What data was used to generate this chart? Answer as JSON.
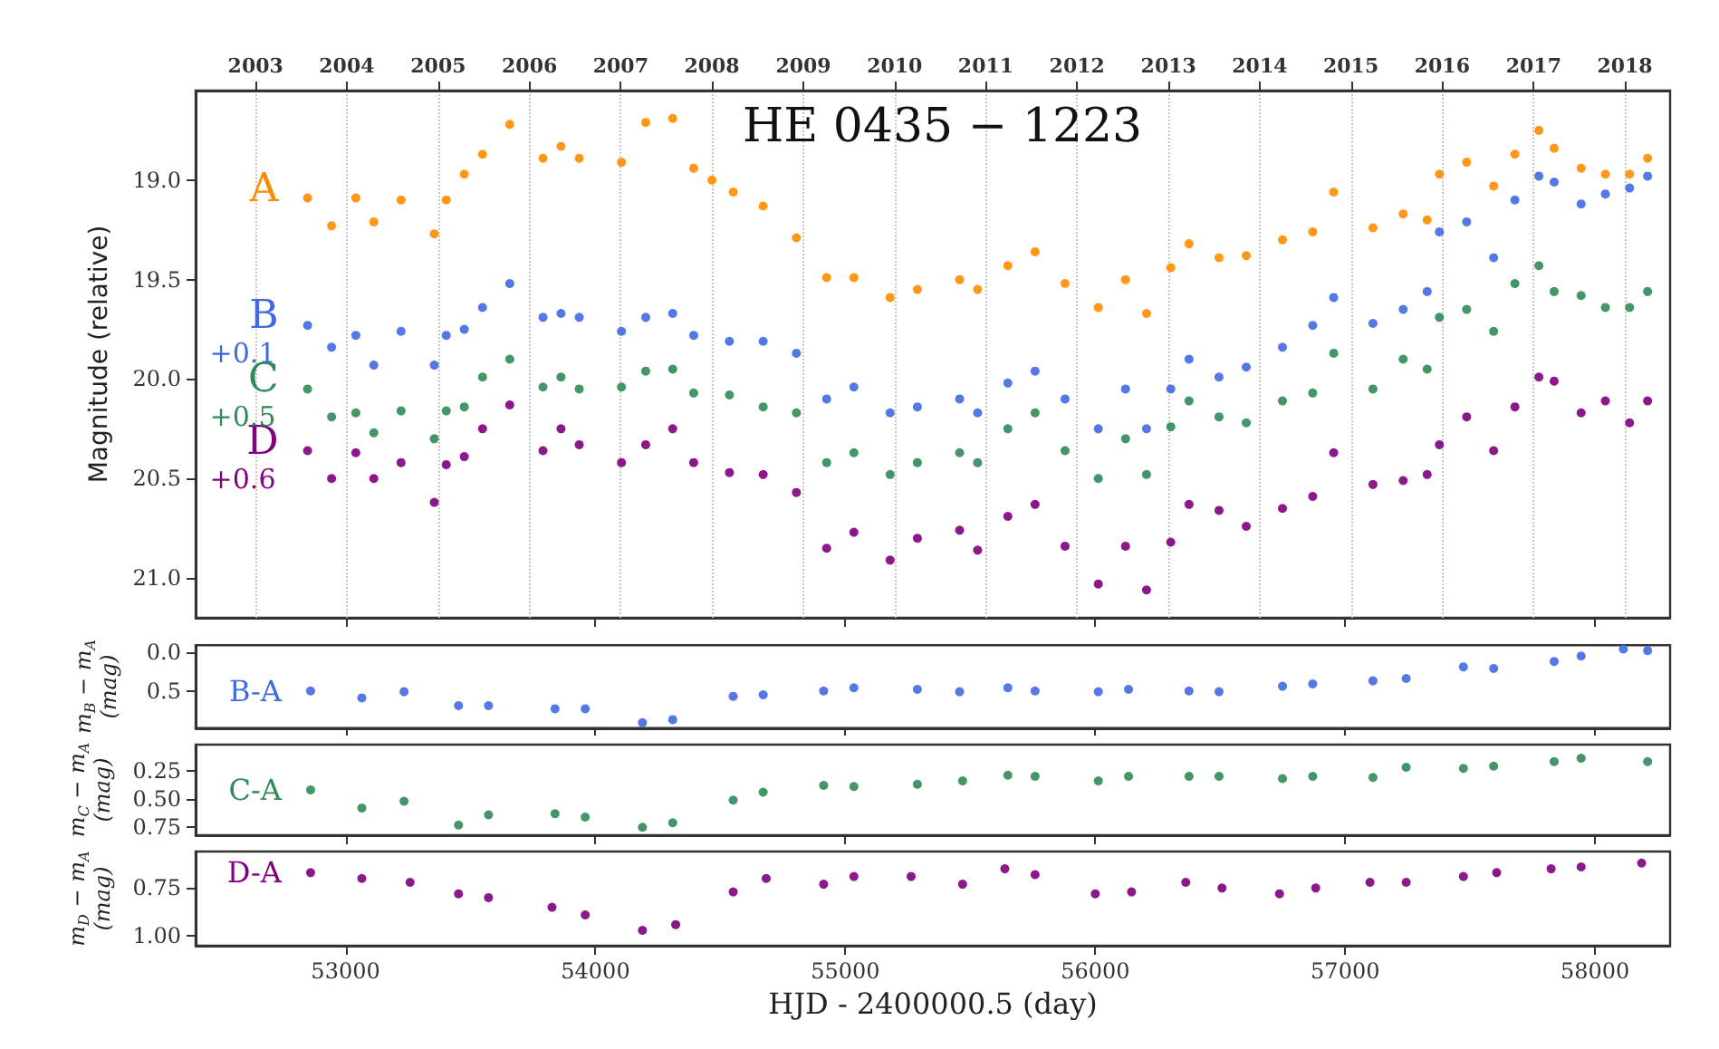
{
  "chart_data": [
    {
      "type": "scatter",
      "title": "HE 0435 − 1223",
      "ylabel": "Magnitude (relative)",
      "marker": "circle",
      "grid": "x",
      "tick_labels": "y",
      "xlim": [
        52400,
        58300
      ],
      "ylim": [
        21.2,
        18.55
      ],
      "xticks": [
        53000,
        54000,
        55000,
        56000,
        57000,
        58000
      ],
      "yticks": [
        {
          "value": 19,
          "label": "19.0"
        },
        19.5,
        {
          "value": 20,
          "label": "20.0"
        },
        20.5,
        {
          "value": 21,
          "label": "21.0"
        }
      ],
      "x2lim": [
        "2002-05-06",
        "2018-07-01"
      ],
      "x2ticks": [
        "2003",
        "2004",
        "2005",
        "2006",
        "2007",
        "2008",
        "2009",
        "2010",
        "2011",
        "2012",
        "2013",
        "2014",
        "2015",
        "2016",
        "2017",
        "2018"
      ],
      "annotations": [
        "+0.1",
        "+0.5",
        "+0.6"
      ],
      "series": [
        {
          "name": "A",
          "color": "#ff8c00",
          "x": [
            52848,
            52944,
            53041,
            53113,
            53222,
            53355,
            53403,
            53475,
            53548,
            53657,
            53790,
            53862,
            53935,
            54104,
            54201,
            54309,
            54393,
            54466,
            54551,
            54671,
            54804,
            54925,
            55034,
            55179,
            55288,
            55457,
            55529,
            55650,
            55759,
            55879,
            56012,
            56121,
            56205,
            56302,
            56375,
            56495,
            56604,
            56749,
            56870,
            56954,
            57111,
            57232,
            57328,
            57377,
            57486,
            57594,
            57679,
            57775,
            57836,
            57944,
            58041,
            58138,
            58210
          ],
          "values": [
            19.09,
            19.23,
            19.09,
            19.21,
            19.1,
            19.27,
            19.1,
            18.97,
            18.87,
            18.72,
            18.89,
            18.83,
            18.89,
            18.91,
            18.71,
            18.69,
            18.94,
            19.0,
            19.06,
            19.13,
            19.29,
            19.49,
            19.49,
            19.59,
            19.55,
            19.5,
            19.55,
            19.43,
            19.36,
            19.52,
            19.64,
            19.5,
            19.67,
            19.44,
            19.32,
            19.39,
            19.38,
            19.3,
            19.26,
            19.06,
            19.24,
            19.17,
            19.2,
            18.97,
            18.91,
            19.03,
            18.87,
            18.75,
            18.84,
            18.94,
            18.97,
            18.97,
            18.89
          ]
        },
        {
          "name": "B",
          "color": "#4169e1",
          "x": [
            52848,
            52944,
            53041,
            53113,
            53222,
            53355,
            53403,
            53475,
            53548,
            53657,
            53790,
            53862,
            53935,
            54104,
            54201,
            54309,
            54393,
            54536,
            54671,
            54804,
            54925,
            55034,
            55179,
            55288,
            55457,
            55529,
            55650,
            55759,
            55879,
            56012,
            56121,
            56205,
            56302,
            56375,
            56495,
            56604,
            56749,
            56870,
            56954,
            57111,
            57232,
            57328,
            57377,
            57486,
            57594,
            57679,
            57775,
            57836,
            57944,
            58041,
            58138,
            58210
          ],
          "values": [
            19.73,
            19.84,
            19.78,
            19.93,
            19.76,
            19.93,
            19.78,
            19.75,
            19.64,
            19.52,
            19.69,
            19.67,
            19.69,
            19.76,
            19.69,
            19.67,
            19.78,
            19.81,
            19.81,
            19.87,
            20.1,
            20.04,
            20.17,
            20.14,
            20.1,
            20.17,
            20.02,
            19.96,
            20.1,
            20.25,
            20.05,
            20.25,
            20.05,
            19.9,
            19.99,
            19.94,
            19.84,
            19.73,
            19.59,
            19.72,
            19.65,
            19.56,
            19.26,
            19.21,
            19.39,
            19.1,
            18.98,
            19.01,
            19.12,
            19.07,
            19.04,
            18.98
          ]
        },
        {
          "name": "C",
          "color": "#2e8b57",
          "x": [
            52848,
            52944,
            53041,
            53113,
            53222,
            53355,
            53403,
            53475,
            53548,
            53657,
            53790,
            53862,
            53935,
            54104,
            54201,
            54309,
            54393,
            54536,
            54671,
            54804,
            54925,
            55034,
            55179,
            55288,
            55457,
            55529,
            55650,
            55759,
            55879,
            56012,
            56121,
            56205,
            56302,
            56375,
            56495,
            56604,
            56749,
            56870,
            56954,
            57111,
            57232,
            57328,
            57377,
            57486,
            57594,
            57679,
            57775,
            57836,
            57944,
            58041,
            58138,
            58210
          ],
          "values": [
            20.05,
            20.19,
            20.17,
            20.27,
            20.16,
            20.3,
            20.16,
            20.14,
            19.99,
            19.9,
            20.04,
            19.99,
            20.05,
            20.04,
            19.96,
            19.95,
            20.07,
            20.08,
            20.14,
            20.17,
            20.42,
            20.37,
            20.48,
            20.42,
            20.37,
            20.42,
            20.25,
            20.17,
            20.36,
            20.5,
            20.3,
            20.48,
            20.24,
            20.11,
            20.19,
            20.22,
            20.11,
            20.07,
            19.87,
            20.05,
            19.9,
            19.95,
            19.69,
            19.65,
            19.76,
            19.52,
            19.43,
            19.56,
            19.58,
            19.64,
            19.64,
            19.56
          ]
        },
        {
          "name": "D",
          "color": "#800080",
          "x": [
            52848,
            52944,
            53041,
            53113,
            53222,
            53355,
            53403,
            53475,
            53548,
            53657,
            53790,
            53862,
            53935,
            54104,
            54201,
            54309,
            54393,
            54536,
            54671,
            54804,
            54925,
            55034,
            55179,
            55288,
            55457,
            55529,
            55650,
            55759,
            55879,
            56012,
            56121,
            56205,
            56302,
            56375,
            56495,
            56604,
            56749,
            56870,
            56954,
            57111,
            57232,
            57328,
            57377,
            57486,
            57594,
            57679,
            57775,
            57836,
            57944,
            58041,
            58138,
            58210
          ],
          "values": [
            20.36,
            20.5,
            20.37,
            20.5,
            20.42,
            20.62,
            20.43,
            20.39,
            20.25,
            20.13,
            20.36,
            20.25,
            20.33,
            20.42,
            20.33,
            20.25,
            20.42,
            20.47,
            20.48,
            20.57,
            20.85,
            20.77,
            20.91,
            20.8,
            20.76,
            20.86,
            20.69,
            20.63,
            20.84,
            21.03,
            20.84,
            21.06,
            20.82,
            20.63,
            20.66,
            20.74,
            20.65,
            20.59,
            20.37,
            20.53,
            20.51,
            20.48,
            20.33,
            20.19,
            20.36,
            20.14,
            19.99,
            20.01,
            20.17,
            20.11,
            20.22,
            20.11
          ]
        }
      ]
    },
    {
      "type": "scatter",
      "ylabel": "m$_{B}$ − m$_{A}$\n(mag)",
      "marker": "circle",
      "tick_labels": "y",
      "xlim": [
        52400,
        58300
      ],
      "ylim": [
        0.98,
        -0.09
      ],
      "xticks": [
        53000,
        54000,
        55000,
        56000,
        57000,
        58000
      ],
      "yticks": [
        {
          "value": 0,
          "label": "0.0"
        },
        0.5
      ],
      "series": [
        {
          "name": "B-A",
          "color": "#4169e1",
          "x": [
            52860,
            53065,
            53234,
            53452,
            53572,
            53838,
            53959,
            54188,
            54309,
            54551,
            54671,
            54913,
            55034,
            55288,
            55457,
            55650,
            55759,
            56012,
            56133,
            56375,
            56495,
            56749,
            56870,
            57111,
            57244,
            57473,
            57594,
            57836,
            57944,
            58113,
            58210
          ],
          "values": [
            0.5,
            0.59,
            0.51,
            0.69,
            0.69,
            0.73,
            0.73,
            0.91,
            0.87,
            0.57,
            0.55,
            0.5,
            0.46,
            0.48,
            0.51,
            0.46,
            0.5,
            0.51,
            0.48,
            0.5,
            0.51,
            0.44,
            0.41,
            0.37,
            0.34,
            0.19,
            0.21,
            0.12,
            0.05,
            -0.04,
            -0.02
          ]
        }
      ]
    },
    {
      "type": "scatter",
      "ylabel": "m$_{C}$ − m$_{A}$\n(mag)",
      "marker": "circle",
      "tick_labels": "y",
      "xlim": [
        52400,
        58300
      ],
      "ylim": [
        0.82,
        0.02
      ],
      "xticks": [
        53000,
        54000,
        55000,
        56000,
        57000,
        58000
      ],
      "yticks": [
        0.25,
        {
          "value": 0.5,
          "label": "0.50"
        },
        0.75
      ],
      "series": [
        {
          "name": "C-A",
          "color": "#2e8b57",
          "x": [
            52860,
            53065,
            53234,
            53452,
            53572,
            53838,
            53959,
            54188,
            54309,
            54551,
            54671,
            54913,
            55034,
            55288,
            55469,
            55650,
            55759,
            56012,
            56133,
            56375,
            56495,
            56749,
            56870,
            57111,
            57244,
            57473,
            57594,
            57836,
            57944,
            58210
          ],
          "values": [
            0.42,
            0.58,
            0.52,
            0.73,
            0.64,
            0.63,
            0.66,
            0.75,
            0.71,
            0.51,
            0.44,
            0.38,
            0.39,
            0.37,
            0.34,
            0.29,
            0.3,
            0.34,
            0.3,
            0.3,
            0.3,
            0.32,
            0.3,
            0.31,
            0.22,
            0.23,
            0.21,
            0.17,
            0.14,
            0.17
          ]
        }
      ]
    },
    {
      "type": "scatter",
      "xlabel": "HJD - 2400000.5 (day)",
      "ylabel": "m$_{D}$ − m$_{A}$\n(mag)",
      "marker": "circle",
      "xlim": [
        52400,
        58300
      ],
      "ylim": [
        1.05,
        0.56
      ],
      "xticks": [
        53000,
        54000,
        55000,
        56000,
        57000,
        58000
      ],
      "yticks": [
        0.75,
        {
          "value": 1,
          "label": "1.00"
        }
      ],
      "series": [
        {
          "name": "D-A",
          "color": "#800080",
          "x": [
            52860,
            53065,
            53258,
            53452,
            53572,
            53826,
            53959,
            54188,
            54321,
            54551,
            54683,
            54913,
            55034,
            55263,
            55469,
            55638,
            55759,
            56000,
            56145,
            56362,
            56507,
            56737,
            56882,
            57099,
            57244,
            57473,
            57606,
            57824,
            57944,
            58186
          ],
          "values": [
            0.67,
            0.7,
            0.72,
            0.78,
            0.8,
            0.85,
            0.89,
            0.97,
            0.94,
            0.77,
            0.7,
            0.73,
            0.69,
            0.69,
            0.73,
            0.65,
            0.68,
            0.78,
            0.77,
            0.72,
            0.75,
            0.78,
            0.75,
            0.72,
            0.72,
            0.69,
            0.67,
            0.65,
            0.64,
            0.62
          ]
        }
      ]
    }
  ]
}
